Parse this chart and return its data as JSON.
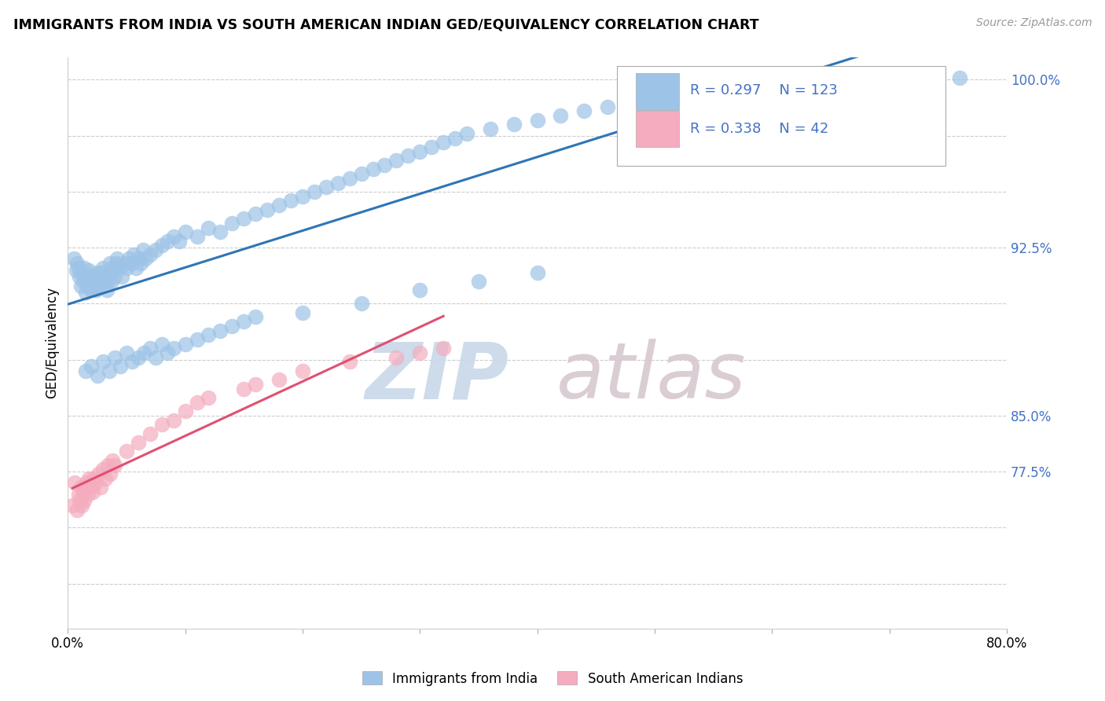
{
  "title": "IMMIGRANTS FROM INDIA VS SOUTH AMERICAN INDIAN GED/EQUIVALENCY CORRELATION CHART",
  "source": "Source: ZipAtlas.com",
  "ylabel": "GED/Equivalency",
  "xlim": [
    0.0,
    0.8
  ],
  "ylim": [
    0.755,
    1.01
  ],
  "india_R": 0.297,
  "india_N": 123,
  "sa_indian_R": 0.338,
  "sa_indian_N": 42,
  "india_color": "#9DC3E6",
  "sa_indian_color": "#F4ACBE",
  "india_line_color": "#2E75B6",
  "sa_indian_line_color": "#E05070",
  "watermark_zip": "ZIP",
  "watermark_atlas": "atlas",
  "india_points_x": [
    0.005,
    0.007,
    0.008,
    0.009,
    0.01,
    0.011,
    0.012,
    0.013,
    0.014,
    0.015,
    0.016,
    0.017,
    0.018,
    0.019,
    0.02,
    0.021,
    0.022,
    0.023,
    0.024,
    0.025,
    0.026,
    0.027,
    0.028,
    0.029,
    0.03,
    0.031,
    0.032,
    0.033,
    0.034,
    0.035,
    0.036,
    0.037,
    0.038,
    0.04,
    0.041,
    0.042,
    0.044,
    0.046,
    0.048,
    0.05,
    0.052,
    0.054,
    0.056,
    0.058,
    0.06,
    0.062,
    0.064,
    0.066,
    0.07,
    0.075,
    0.08,
    0.085,
    0.09,
    0.095,
    0.1,
    0.11,
    0.12,
    0.13,
    0.14,
    0.15,
    0.16,
    0.17,
    0.18,
    0.19,
    0.2,
    0.21,
    0.22,
    0.23,
    0.24,
    0.25,
    0.26,
    0.27,
    0.28,
    0.29,
    0.3,
    0.31,
    0.32,
    0.33,
    0.34,
    0.36,
    0.38,
    0.4,
    0.42,
    0.44,
    0.46,
    0.48,
    0.5,
    0.52,
    0.54,
    0.56,
    0.6,
    0.64,
    0.68,
    0.72,
    0.76,
    0.015,
    0.02,
    0.025,
    0.03,
    0.035,
    0.04,
    0.045,
    0.05,
    0.055,
    0.06,
    0.065,
    0.07,
    0.075,
    0.08,
    0.085,
    0.09,
    0.1,
    0.11,
    0.12,
    0.13,
    0.14,
    0.15,
    0.16,
    0.2,
    0.25,
    0.3,
    0.35,
    0.4
  ],
  "india_points_y": [
    0.92,
    0.915,
    0.918,
    0.916,
    0.912,
    0.908,
    0.914,
    0.91,
    0.916,
    0.905,
    0.91,
    0.908,
    0.915,
    0.912,
    0.906,
    0.91,
    0.908,
    0.912,
    0.906,
    0.914,
    0.91,
    0.908,
    0.912,
    0.914,
    0.916,
    0.91,
    0.912,
    0.906,
    0.91,
    0.914,
    0.918,
    0.91,
    0.916,
    0.912,
    0.918,
    0.92,
    0.916,
    0.912,
    0.918,
    0.916,
    0.92,
    0.918,
    0.922,
    0.916,
    0.92,
    0.918,
    0.924,
    0.92,
    0.922,
    0.924,
    0.926,
    0.928,
    0.93,
    0.928,
    0.932,
    0.93,
    0.934,
    0.932,
    0.936,
    0.938,
    0.94,
    0.942,
    0.944,
    0.946,
    0.948,
    0.95,
    0.952,
    0.954,
    0.956,
    0.958,
    0.96,
    0.962,
    0.964,
    0.966,
    0.968,
    0.97,
    0.972,
    0.974,
    0.976,
    0.978,
    0.98,
    0.982,
    0.984,
    0.986,
    0.988,
    0.99,
    0.991,
    0.992,
    0.994,
    0.996,
    0.997,
    0.998,
    0.999,
    1.0,
    1.001,
    0.87,
    0.872,
    0.868,
    0.874,
    0.87,
    0.876,
    0.872,
    0.878,
    0.874,
    0.876,
    0.878,
    0.88,
    0.876,
    0.882,
    0.878,
    0.88,
    0.882,
    0.884,
    0.886,
    0.888,
    0.89,
    0.892,
    0.894,
    0.896,
    0.9,
    0.906,
    0.91,
    0.914
  ],
  "sa_points_x": [
    0.004,
    0.006,
    0.008,
    0.009,
    0.01,
    0.011,
    0.012,
    0.013,
    0.014,
    0.015,
    0.016,
    0.017,
    0.018,
    0.019,
    0.02,
    0.021,
    0.022,
    0.024,
    0.026,
    0.028,
    0.03,
    0.032,
    0.034,
    0.036,
    0.038,
    0.04,
    0.05,
    0.06,
    0.07,
    0.08,
    0.09,
    0.1,
    0.11,
    0.12,
    0.15,
    0.16,
    0.18,
    0.2,
    0.24,
    0.28,
    0.3,
    0.32
  ],
  "sa_points_y": [
    0.81,
    0.82,
    0.808,
    0.815,
    0.812,
    0.818,
    0.81,
    0.816,
    0.812,
    0.818,
    0.82,
    0.815,
    0.822,
    0.818,
    0.82,
    0.816,
    0.822,
    0.82,
    0.824,
    0.818,
    0.826,
    0.822,
    0.828,
    0.824,
    0.83,
    0.828,
    0.834,
    0.838,
    0.842,
    0.846,
    0.848,
    0.852,
    0.856,
    0.858,
    0.862,
    0.864,
    0.866,
    0.87,
    0.874,
    0.876,
    0.878,
    0.88
  ]
}
